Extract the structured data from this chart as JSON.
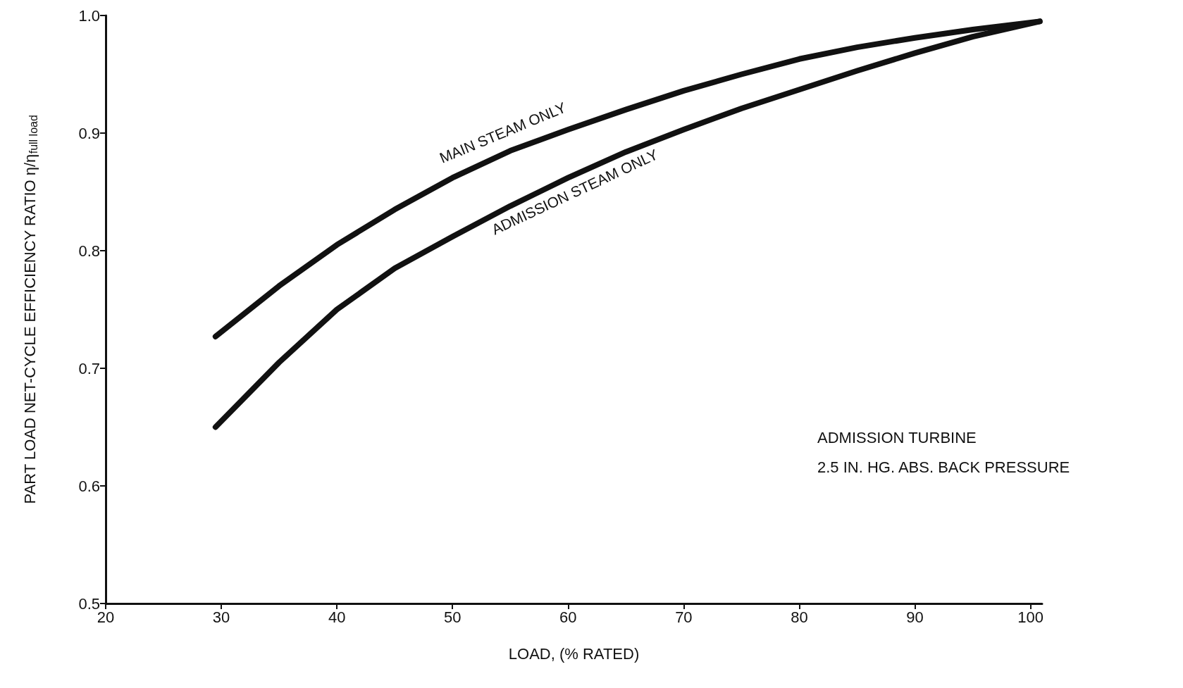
{
  "chart_data": {
    "type": "line",
    "xlabel": "LOAD, (% RATED)",
    "ylabel": "PART LOAD NET-CYCLE EFFICIENCY RATIO η/η$_{full load}$",
    "xlim": [
      20,
      101
    ],
    "xticks": [
      20,
      30,
      40,
      50,
      60,
      70,
      80,
      90,
      100
    ],
    "ylim": [
      0.5,
      1.0
    ],
    "yticks": [
      {
        "value": 0.5,
        "label": "0.5"
      },
      {
        "value": 0.6,
        "label": "0.6"
      },
      {
        "value": 0.7,
        "label": "0.7"
      },
      {
        "value": 0.8,
        "label": "0.8"
      },
      {
        "value": 0.9,
        "label": "0.9"
      },
      {
        "value": 1.0,
        "label": "1.0"
      }
    ],
    "grid": false,
    "marker": "none",
    "line_style": "solid",
    "annotations": [
      "ADMISSION TURBINE",
      "2.5 IN. HG. ABS. BACK PRESSURE"
    ],
    "series": [
      {
        "name": "MAIN STEAM ONLY",
        "color": "#111111",
        "x": [
          29.5,
          35,
          40,
          45,
          50,
          55,
          60,
          65,
          70,
          75,
          80,
          85,
          90,
          95,
          100.8
        ],
        "values": [
          0.727,
          0.77,
          0.805,
          0.835,
          0.862,
          0.885,
          0.903,
          0.92,
          0.936,
          0.95,
          0.963,
          0.973,
          0.981,
          0.988,
          0.995
        ]
      },
      {
        "name": "ADMISSION STEAM ONLY",
        "color": "#111111",
        "x": [
          29.5,
          35,
          40,
          45,
          50,
          55,
          60,
          65,
          70,
          75,
          80,
          85,
          90,
          95,
          100.8
        ],
        "values": [
          0.65,
          0.705,
          0.75,
          0.785,
          0.812,
          0.838,
          0.862,
          0.884,
          0.903,
          0.921,
          0.937,
          0.953,
          0.968,
          0.982,
          0.995
        ]
      }
    ]
  }
}
